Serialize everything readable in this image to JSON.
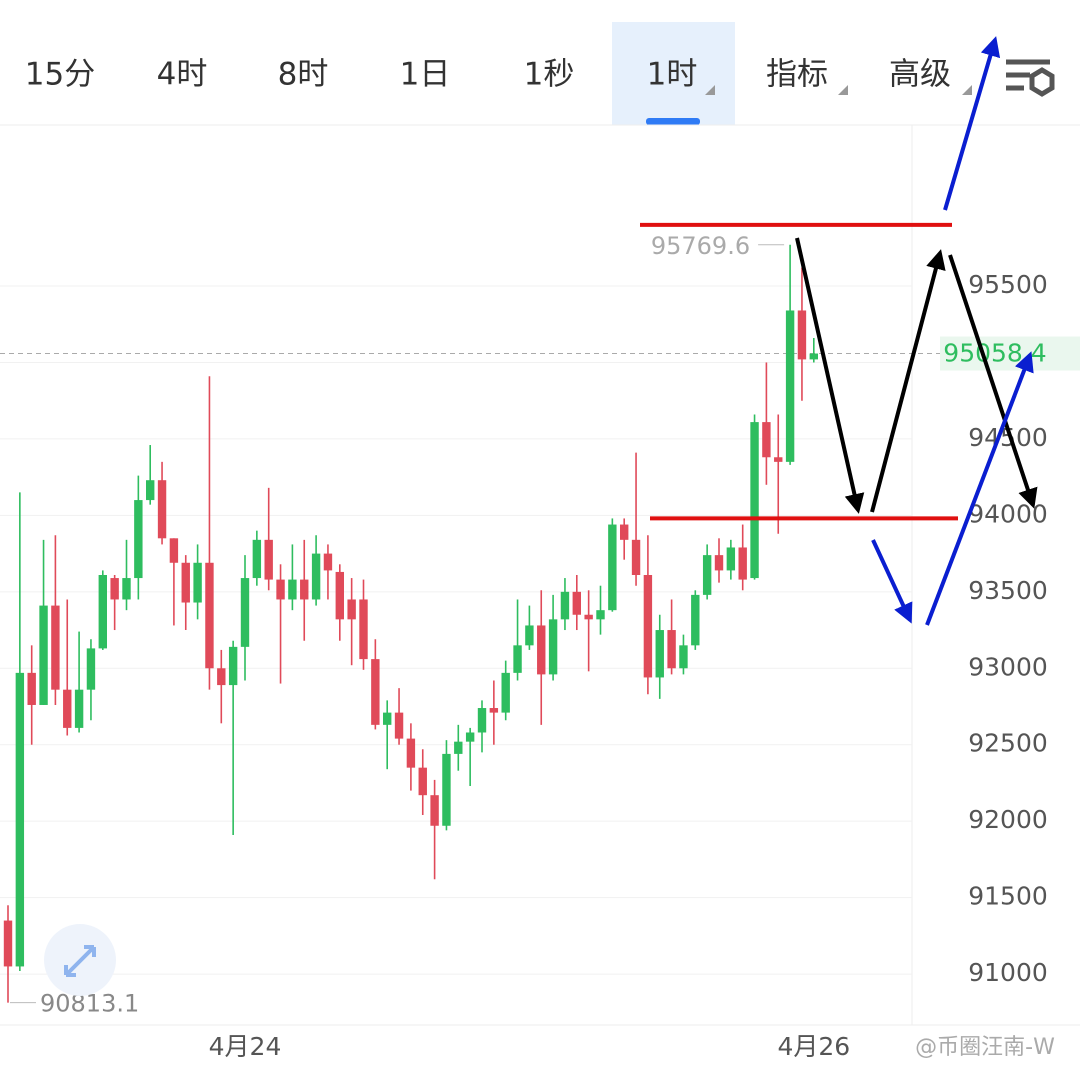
{
  "tabs": [
    "15分",
    "4时",
    "8时",
    "1日",
    "1秒",
    "1时",
    "指标",
    "高级"
  ],
  "selected_tab": 5,
  "watermark": "@币圈汪南-W",
  "chart_data": {
    "type": "candlestick",
    "categories": [
      null,
      null,
      null,
      null,
      null,
      null,
      null,
      null,
      null,
      null,
      null,
      null,
      null,
      null,
      null,
      null,
      null,
      null,
      null,
      null,
      "4月24",
      null,
      null,
      null,
      null,
      null,
      null,
      null,
      null,
      null,
      null,
      null,
      null,
      null,
      null,
      null,
      null,
      null,
      null,
      null,
      null,
      null,
      null,
      null,
      null,
      null,
      null,
      null,
      null,
      null,
      null,
      null,
      null,
      null,
      null,
      null,
      null,
      null,
      null,
      null,
      null,
      null,
      null,
      null,
      null,
      null,
      null,
      null,
      "4月26"
    ],
    "open": [
      91350,
      91050,
      92970,
      92760,
      93410,
      92860,
      92610,
      92860,
      93130,
      93590,
      93450,
      93590,
      94100,
      94230,
      93850,
      93690,
      93430,
      93690,
      93000,
      92890,
      93140,
      93590,
      93840,
      93580,
      93450,
      93580,
      93450,
      93750,
      93630,
      93450,
      93450,
      93060,
      92630,
      92710,
      92540,
      92350,
      92170,
      91970,
      92440,
      92520,
      92580,
      92740,
      92710,
      92970,
      93150,
      93280,
      92960,
      93320,
      93500,
      93350,
      93320,
      93380,
      93940,
      93840,
      93610,
      92940,
      93250,
      93000,
      93150,
      93480,
      93740,
      93640,
      93790,
      93590,
      94610,
      94380,
      94350,
      95340,
      95020
    ],
    "high": [
      91450,
      94150,
      93150,
      93840,
      93870,
      93450,
      93240,
      93190,
      93640,
      93610,
      93840,
      94260,
      94460,
      94350,
      93850,
      93740,
      93810,
      94910,
      93120,
      93180,
      93740,
      93900,
      94180,
      93680,
      93810,
      93840,
      93870,
      93810,
      93680,
      93590,
      93580,
      93190,
      92790,
      92870,
      92640,
      92470,
      92270,
      92530,
      92630,
      92610,
      92790,
      92920,
      93050,
      93450,
      93410,
      93510,
      93480,
      93590,
      93610,
      93510,
      93540,
      93980,
      93980,
      94410,
      93870,
      93350,
      93450,
      93220,
      93510,
      93810,
      93850,
      93840,
      93940,
      94660,
      95000,
      94660,
      95769.6,
      95620,
      95160
    ],
    "low": [
      90813.1,
      91020,
      92500,
      92760,
      92760,
      92560,
      92580,
      92660,
      93120,
      93250,
      93380,
      93450,
      94070,
      93810,
      93280,
      93250,
      93320,
      92860,
      92640,
      91910,
      92920,
      93540,
      93510,
      92900,
      93380,
      93180,
      93410,
      93450,
      93180,
      93020,
      92990,
      92600,
      92340,
      92500,
      92200,
      92040,
      91620,
      91940,
      92330,
      92230,
      92450,
      92500,
      92660,
      92920,
      93120,
      92630,
      92920,
      93250,
      93250,
      92980,
      93220,
      93370,
      93710,
      93540,
      92830,
      92800,
      92960,
      92960,
      93120,
      93450,
      93560,
      93580,
      93510,
      93580,
      94200,
      93880,
      94330,
      94750,
      95000
    ],
    "close": [
      91050,
      92970,
      92760,
      93410,
      92860,
      92610,
      92860,
      93130,
      93610,
      93450,
      93590,
      94100,
      94230,
      93850,
      93690,
      93430,
      93690,
      93000,
      92890,
      93140,
      93590,
      93840,
      93580,
      93450,
      93580,
      93450,
      93750,
      93640,
      93320,
      93320,
      93060,
      92630,
      92710,
      92540,
      92350,
      92170,
      91970,
      92440,
      92520,
      92580,
      92740,
      92710,
      92970,
      93150,
      93280,
      92960,
      93320,
      93500,
      93350,
      93320,
      93380,
      93940,
      93840,
      93610,
      92940,
      93250,
      93000,
      93150,
      93480,
      93740,
      93640,
      93790,
      93580,
      94610,
      94380,
      94350,
      95340,
      95020,
      95058.4
    ],
    "up_color": "#2ebd5f",
    "down_color": "#e04a59",
    "ylim": [
      90667,
      96553
    ],
    "yticks": [
      91000,
      91500,
      92000,
      92500,
      93000,
      93500,
      94000,
      94500,
      95000,
      95500
    ],
    "grid": true,
    "max_label": 95769.6,
    "min_label": 90813.1,
    "last_price": 95058.4,
    "levels": [
      95900,
      93980
    ],
    "level_color": "#e01010"
  }
}
